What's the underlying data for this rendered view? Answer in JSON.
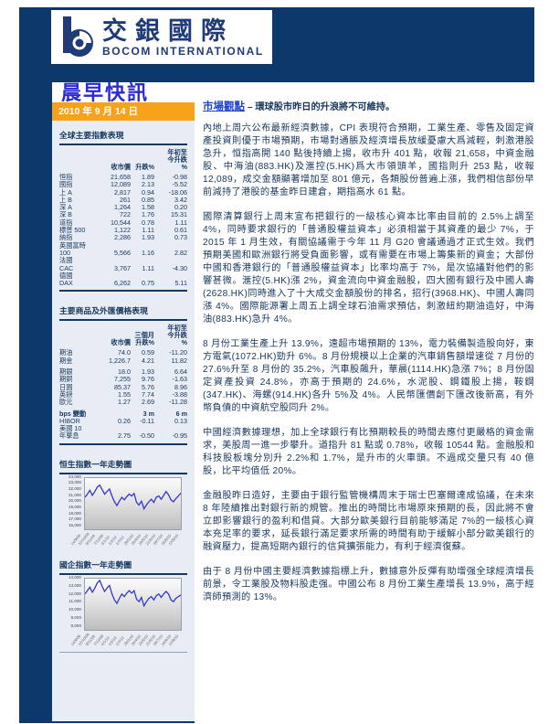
{
  "header": {
    "logo_cn": "交銀國際",
    "logo_en": "BOCOM  INTERNATIONAL"
  },
  "masthead": {
    "title": "晨早快訊",
    "date": "2010 年 9 月 14 日"
  },
  "sidebar": {
    "indices_table": {
      "title": "全球主要指數表現",
      "col_headers": [
        [
          "收市價"
        ],
        [
          "升跌%"
        ],
        [
          "年初至",
          "今升跌",
          "%"
        ]
      ],
      "rows": [
        {
          "label": "恒指",
          "v": [
            "21,658",
            "1.89",
            "-0.98"
          ]
        },
        {
          "label": "國指",
          "v": [
            "12,089",
            "2.13",
            "-5.52"
          ]
        },
        {
          "label": "上 A",
          "v": [
            "2,817",
            "0.94",
            "-18.06"
          ]
        },
        {
          "label": "上 B",
          "v": [
            "261",
            "0.85",
            "3.42"
          ]
        },
        {
          "label": "深 A",
          "v": [
            "1,264",
            "1.58",
            "0.20"
          ]
        },
        {
          "label": "深 B",
          "v": [
            "722",
            "1.76",
            "15.31"
          ]
        },
        {
          "label": "道指",
          "v": [
            "10,544",
            "0.78",
            "1.11"
          ]
        },
        {
          "label": "標普 500",
          "v": [
            "1,122",
            "1.11",
            "0.61"
          ]
        },
        {
          "label": "納指",
          "v": [
            "2,286",
            "1.93",
            "0.73"
          ]
        },
        {
          "pre": "英國富時",
          "label": "100",
          "v": [
            "5,566",
            "1.16",
            "2.82"
          ]
        },
        {
          "pre": "法國",
          "label": "CAC",
          "v": [
            "3,767",
            "1.11",
            "-4.30"
          ]
        },
        {
          "pre": "德國",
          "label": "DAX",
          "v": [
            "6,262",
            "0.75",
            "5.11"
          ]
        }
      ]
    },
    "commodities_table": {
      "title": "主要商品及外匯價格表現",
      "col_headers": [
        [
          "收市價"
        ],
        [
          "三個月",
          "升跌%"
        ],
        [
          "年初至",
          "今升跌",
          "%"
        ]
      ],
      "rows": [
        {
          "label": "期油",
          "v": [
            "74.0",
            "0.59",
            "-11.20"
          ]
        },
        {
          "label": "期金",
          "v": [
            "1,226.7",
            "4.21",
            "11.82"
          ]
        },
        {
          "label": "期銀",
          "gap": true,
          "v": [
            "18.0",
            "1.93",
            "6.64"
          ]
        },
        {
          "label": "期銅",
          "v": [
            "7,255",
            "9.76",
            "-1.63"
          ]
        },
        {
          "label": "日圓",
          "v": [
            "85.37",
            "5.76",
            "8.96"
          ]
        },
        {
          "label": "英鎊",
          "v": [
            "1.55",
            "7.74",
            "-3.88"
          ]
        },
        {
          "label": "歐元",
          "v": [
            "1.27",
            "2.69",
            "-11.28"
          ]
        },
        {
          "label": "bps 變動",
          "bold": true,
          "gap": true,
          "v": [
            "",
            "3 m",
            "6 m"
          ]
        },
        {
          "label": "HIBOR",
          "v": [
            "0.26",
            "-0.11",
            "0.13"
          ]
        },
        {
          "pre": "美國 10",
          "label": "年孳息",
          "v": [
            "2.75",
            "-0.50",
            "-0.95"
          ]
        }
      ]
    },
    "hsi_chart_title": "恒生指數一年走勢圖",
    "hscei_chart_title": "國企指數一年走勢圖"
  },
  "main": {
    "headline_link": "市場觀點",
    "headline_rest": " – 環球股市昨日的升浪將不可維持。",
    "paragraphs": [
      "內地上周六公布最新經濟數據，CPI 表現符合預期，工業生產、零售及固定資產投資則優于市場預期，市場對通脹及經濟增長放緩憂慮大爲減輕，刺激港股急升，恒指高開 140 點後持續上揚，收市升 401 點，收報 21,658，中資金融股、中海油(883.HK)及滙控(5.HK)爲大市領頭羊，國指則升 253 點，收報 12,089，成交金額顯著增加至 801 億元，各類股份普遍上漲，我們相信部份早前減持了港股的基金昨日建倉，期指高水 61 點。",
      "國際清算銀行上周末宣布把銀行的一級核心資本比率由目前的 2.5%上調至 4%，同時要求銀行的「普通股權益資本」必須相當于其資產的最少 7%，于 2015 年 1 月生效，有關協議需于今年 11 月 G20 會議通過才正式生效。我們預期美國和歐洲銀行將受負面影響，或有需要在市場上籌集新的資金；大部份中國和香港銀行的「普通股權益資本」比率均高于 7%，是次協議對他們的影響甚微。滙控(5.HK)漲 2%，資金流向中資金融股，四大國有銀行及中國人壽(2628.HK)同時進入了十大成交金額股份的排名，招行(3968.HK)、中國人壽同漲 4%。國際能源署上周五上調全球石油需求預估，刺激紐約期油造好，中海油(883.HK)急升 4%。",
      "8 月份工業生產上升 13.9%，遠超市場預期的 13%，電力裝備製造股向好，東方電氣(1072.HK)勁升 6%。8 月份規模以上企業的汽車銷售額增速從 7 月份的 27.6%升至 8 月份的 35.2%，汽車股飆升，華晨(1114.HK)急漲 7%；8 月份固定資產投資 24.8%，亦高于預期的 24.6%，水泥股、鋼鐵股上揚，鞍鋼(347.HK)、海螺(914.HK)各升 5%及 4%。人民幣匯價創下匯改後新高，有外幣負債的中資航空股同升 2%。",
      "中國經濟數據理想，加上全球銀行有比預期較長的時間去應付更嚴格的資金需求，美股周一進一步攀升。道指升 81 點或 0.78%，收報 10544 點。金融股和科技股板塊分別升 2.2%和 1.7%，是升市的火車頭。不過成交量只有 40 億股，比平均值低 20%。",
      "金融股昨日造好，主要由于銀行監管機構周末于瑞士巴塞爾達成協議，在未來 8 年陸續推出對銀行新的規管。推出的時間比市場原來預期的長，因此將不會立即影響銀行的盈利和借貸。大部分歐美銀行目前能够滿足 7%的一級核心資本充足率的要求，延長銀行滿足要求所需的時間有助于緩解小部分歐美銀行的融資壓力，提高短期內銀行的信貸擴張能力，有利于經濟復蘇。",
      "由于 8 月份中國主要經濟數據指標上升，數據意外反彈有助增强全球經濟增長前景，令工業股及物料股走强。中國公布 8 月份工業生產增長 13.9%，高于經濟師預測的 13%。"
    ]
  },
  "colors": {
    "navy_band": "#0C386B",
    "orange_date_bar": "#F7A21B",
    "masthead_blue": "#2B2BD0",
    "link_blue": "#2244CC",
    "body_text": "#17375E",
    "sidebar_bg": "#E8EDF5",
    "chart_line": "#3538C8"
  },
  "chart_data": [
    {
      "type": "line",
      "title": "恒生指數一年走勢圖",
      "series": [
        {
          "name": "恒生指數",
          "values": [
            21000,
            21500,
            22100,
            21300,
            21900,
            22600,
            22900,
            22200,
            21500,
            21900,
            22300,
            21200,
            20300,
            19700,
            20400,
            21000,
            20600,
            21100,
            21500,
            21200,
            21600,
            20200,
            19800,
            20400,
            19200,
            19800,
            20300,
            20700,
            20200,
            21000,
            21200,
            20700,
            21300,
            21900,
            21400,
            20600,
            20300,
            20800,
            21200,
            21658
          ]
        }
      ],
      "ylim": [
        16000,
        24000
      ],
      "ytick": 1000,
      "x_labels": [
        "14/9/09",
        "12/10/09",
        "9/11/09",
        "7/12/09",
        "4/1/10",
        "1/2/10",
        "1/3/10",
        "29/3/10",
        "26/4/10",
        "24/5/10",
        "21/6/10",
        "19/7/10",
        "16/8/10",
        "13/9/10"
      ],
      "line_color": "#3538C8",
      "grid": false,
      "legend": "none"
    },
    {
      "type": "line",
      "title": "國企指數一年走勢圖",
      "series": [
        {
          "name": "國企指數",
          "values": [
            12200,
            12600,
            13000,
            12400,
            12900,
            13500,
            13800,
            13100,
            12500,
            12900,
            13200,
            12200,
            11500,
            11100,
            11700,
            12200,
            11900,
            12300,
            12600,
            12300,
            12600,
            11600,
            11300,
            11800,
            10800,
            11300,
            11700,
            11900,
            11500,
            12000,
            12200,
            11800,
            12200,
            12500,
            12200,
            11500,
            11300,
            11700,
            11900,
            12089
          ]
        }
      ],
      "ylim": [
        8000,
        14000
      ],
      "ytick": 1000,
      "x_labels": [
        "14/9/09",
        "12/10/09",
        "9/11/09",
        "7/12/09",
        "4/1/10",
        "1/2/10",
        "1/3/10",
        "29/3/10",
        "26/4/10",
        "24/5/10",
        "21/6/10",
        "19/7/10",
        "16/8/10",
        "13/9/10"
      ],
      "line_color": "#3538C8",
      "grid": false,
      "legend": "none"
    }
  ]
}
